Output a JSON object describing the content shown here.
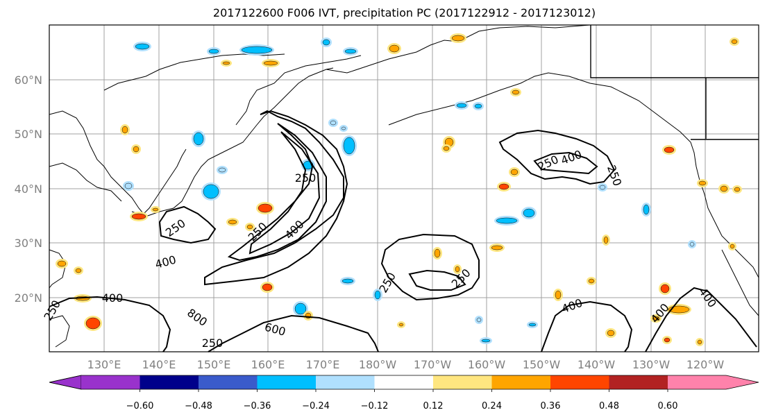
{
  "title": "2017122600 F006 IVT, precipitation PC (2017122912 - 2017123012)",
  "lat_labels": [
    "60°N",
    "50°N",
    "40°N",
    "30°N",
    "20°N"
  ],
  "lon_labels": [
    "130°E",
    "140°E",
    "150°E",
    "160°E",
    "170°E",
    "180°W",
    "170°W",
    "160°W",
    "150°W",
    "140°W",
    "130°W",
    "120°W"
  ],
  "contour_labels": [
    "250",
    "400",
    "600",
    "800",
    "250",
    "400",
    "250",
    "400",
    "250",
    "250",
    "250",
    "250",
    "250",
    "400",
    "250",
    "400",
    "400",
    "400"
  ],
  "colorbar": {
    "tick_labels": [
      "−0.60",
      "−0.48",
      "−0.36",
      "−0.24",
      "−0.12",
      "0.12",
      "0.24",
      "0.36",
      "0.48",
      "0.60"
    ],
    "colors": [
      "#9932cc",
      "#00008b",
      "#3a5bcb",
      "#00bfff",
      "#b0e0fe",
      "#ffffff",
      "#ffe680",
      "#ffa500",
      "#ff4500",
      "#b22222",
      "#ff82ab"
    ]
  },
  "map_data": {
    "type": "filled contour map with IVT line contours",
    "lat_range": [
      "10°N",
      "70°N"
    ],
    "lon_range": [
      "120°E",
      "110°W"
    ],
    "ivt_contour_levels": [
      250,
      400,
      600,
      800
    ]
  }
}
